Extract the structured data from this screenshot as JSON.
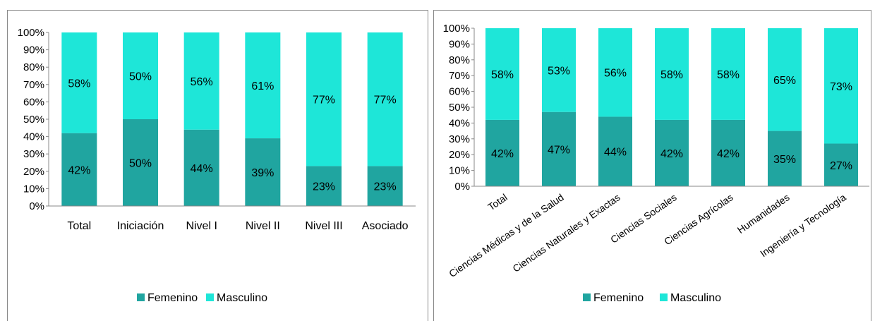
{
  "top_fragment": "",
  "colors": {
    "femenino": "#20a5a0",
    "masculino": "#1ee6d8",
    "axis": "#888888"
  },
  "chart_data": [
    {
      "type": "bar",
      "stacked": true,
      "percent": true,
      "categories": [
        "Total",
        "Iniciación",
        "Nivel I",
        "Nivel II",
        "Nivel III",
        "Asociado"
      ],
      "series": [
        {
          "name": "Femenino",
          "values": [
            42,
            50,
            44,
            39,
            23,
            23
          ],
          "labels": [
            "42%",
            "50%",
            "44%",
            "39%",
            "23%",
            "23%"
          ]
        },
        {
          "name": "Masculino",
          "values": [
            58,
            50,
            56,
            61,
            77,
            77
          ],
          "labels": [
            "58%",
            "50%",
            "56%",
            "61%",
            "77%",
            "77%"
          ]
        }
      ],
      "yticks": [
        "0%",
        "10%",
        "20%",
        "30%",
        "40%",
        "50%",
        "60%",
        "70%",
        "80%",
        "90%",
        "100%"
      ],
      "ylim": [
        0,
        100
      ],
      "legend": "bottom",
      "grid": false
    },
    {
      "type": "bar",
      "stacked": true,
      "percent": true,
      "categories": [
        "Total",
        "Ciencias Médicas y de la Salud",
        "Ciencias Naturales y Exactas",
        "Ciencias Sociales",
        "Ciencias Agrícolas",
        "Humanidades",
        "Ingeniería y Tecnología"
      ],
      "series": [
        {
          "name": "Femenino",
          "values": [
            42,
            47,
            44,
            42,
            42,
            35,
            27
          ],
          "labels": [
            "42%",
            "47%",
            "44%",
            "42%",
            "42%",
            "35%",
            "27%"
          ]
        },
        {
          "name": "Masculino",
          "values": [
            58,
            53,
            56,
            58,
            58,
            65,
            73
          ],
          "labels": [
            "58%",
            "53%",
            "56%",
            "58%",
            "58%",
            "65%",
            "73%"
          ]
        }
      ],
      "yticks": [
        "0%",
        "10%",
        "20%",
        "30%",
        "40%",
        "50%",
        "60%",
        "70%",
        "80%",
        "90%",
        "100%"
      ],
      "ylim": [
        0,
        100
      ],
      "legend": "bottom",
      "grid": false
    }
  ]
}
